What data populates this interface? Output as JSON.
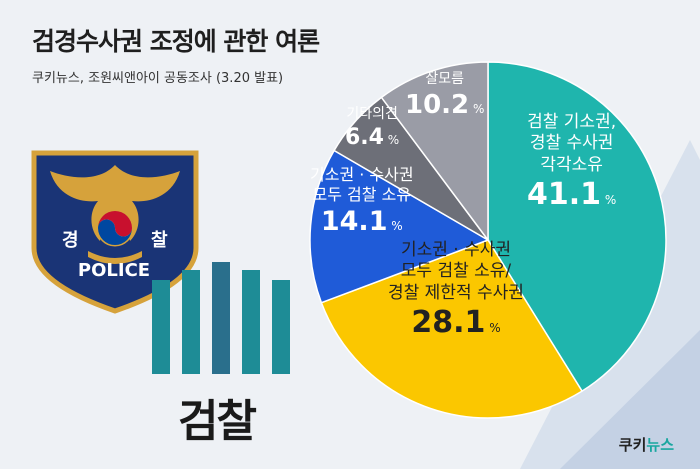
{
  "title": "검경수사권 조정에 관한 여론",
  "subtitle": "쿠키뉴스, 조원씨앤아이 공동조사 (3.20 발표)",
  "badge": {
    "left_char": "경",
    "right_char": "찰",
    "police_label": "POLICE"
  },
  "prosecution_label": "검찰",
  "brand": {
    "part1": "쿠키",
    "part2": "뉴스"
  },
  "colors": {
    "teal": "#1fb5ad",
    "yellow": "#fbc700",
    "blue": "#1f5bd8",
    "dark_gray": "#6d6f78",
    "light_gray": "#9a9ca6",
    "police_blue": "#1a3476",
    "police_gold": "#d6a23b",
    "prosecution_teal": "#1e8c96"
  },
  "chart_data": {
    "type": "pie",
    "title": "검경수사권 조정에 관한 여론",
    "slices": [
      {
        "lines": [
          "검찰 기소권,",
          "경찰 수사권",
          "각각소유"
        ],
        "value": 41.1,
        "value_label": "41.1",
        "color": "#1fb5ad"
      },
      {
        "lines": [
          "기소권 · 수사권",
          "모두 검찰 소유/",
          "경찰 제한적 수사권"
        ],
        "value": 28.1,
        "value_label": "28.1",
        "color": "#fbc700"
      },
      {
        "lines": [
          "기소권 · 수사권",
          "모두 검찰 소유"
        ],
        "value": 14.1,
        "value_label": "14.1",
        "color": "#1f5bd8"
      },
      {
        "lines": [
          "기타의견"
        ],
        "value": 6.4,
        "value_label": "6.4",
        "color": "#6d6f78"
      },
      {
        "lines": [
          "잘모름"
        ],
        "value": 10.2,
        "value_label": "10.2",
        "color": "#9a9ca6"
      }
    ],
    "unit": "%"
  }
}
